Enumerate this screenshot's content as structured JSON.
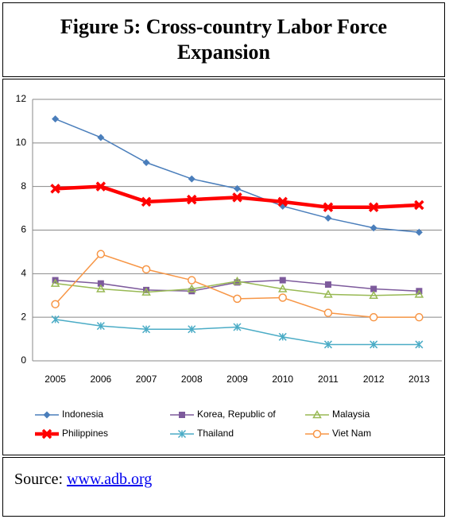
{
  "figure_title": "Figure 5: Cross-country Labor Force Expansion",
  "chart_data": {
    "type": "line",
    "categories": [
      "2005",
      "2006",
      "2007",
      "2008",
      "2009",
      "2010",
      "2011",
      "2012",
      "2013"
    ],
    "ylim": [
      0,
      12
    ],
    "yticks": [
      0,
      2,
      4,
      6,
      8,
      10,
      12
    ],
    "grid": true,
    "legend": "bottom",
    "series": [
      {
        "name": "Indonesia",
        "color": "#4a7ebb",
        "marker": "diamond",
        "width": 1.5,
        "values": [
          11.1,
          10.25,
          9.1,
          8.35,
          7.9,
          7.1,
          6.55,
          6.1,
          5.9
        ]
      },
      {
        "name": "Korea, Republic of",
        "color": "#7d5a9c",
        "marker": "square",
        "width": 1.5,
        "values": [
          3.7,
          3.55,
          3.25,
          3.2,
          3.6,
          3.7,
          3.5,
          3.3,
          3.2
        ]
      },
      {
        "name": "Malaysia",
        "color": "#98b954",
        "marker": "triangle",
        "width": 1.5,
        "values": [
          3.55,
          3.3,
          3.15,
          3.3,
          3.65,
          3.3,
          3.05,
          3.0,
          3.05
        ]
      },
      {
        "name": "Philippines",
        "color": "#ff0000",
        "marker": "x",
        "width": 4.5,
        "values": [
          7.9,
          8.0,
          7.3,
          7.4,
          7.5,
          7.3,
          7.05,
          7.05,
          7.15
        ]
      },
      {
        "name": "Thailand",
        "color": "#4bacc6",
        "marker": "asterisk",
        "width": 1.5,
        "values": [
          1.9,
          1.6,
          1.45,
          1.45,
          1.55,
          1.1,
          0.75,
          0.75,
          0.75
        ]
      },
      {
        "name": "Viet Nam",
        "color": "#f79646",
        "marker": "circle",
        "width": 1.5,
        "values": [
          2.6,
          4.9,
          4.2,
          3.7,
          2.85,
          2.9,
          2.2,
          2.0,
          2.0
        ]
      }
    ]
  },
  "source": {
    "label": "Source:",
    "link": "www.adb.org"
  }
}
